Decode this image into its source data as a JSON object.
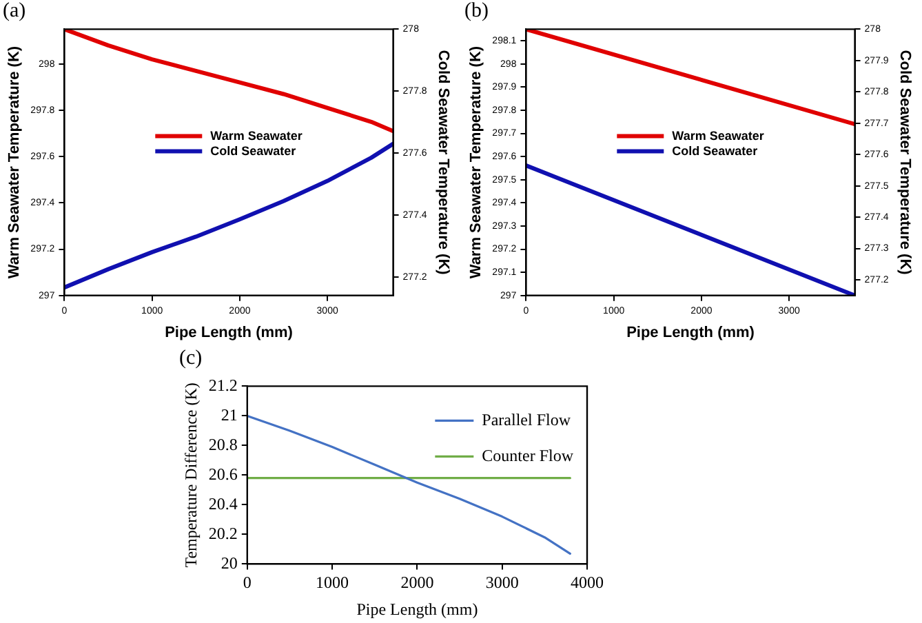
{
  "chart_data": [
    {
      "type": "line",
      "title": "(a)",
      "xlabel": "Pipe Length (mm)",
      "ylabel": "Warm Seawater Temperature (K)",
      "y2label": "Cold Seawater Temperature (K)",
      "x": [
        0,
        500,
        1000,
        1500,
        2000,
        2500,
        3000,
        3500,
        3750
      ],
      "series": [
        {
          "name": "Warm Seawater",
          "color": "#e00000",
          "values": [
            298.15,
            298.08,
            298.02,
            297.97,
            297.92,
            297.87,
            297.81,
            297.75,
            297.71
          ]
        },
        {
          "name": "Cold Seawater",
          "color": "#1010b0",
          "axis": "y2",
          "values": [
            277.166,
            277.225,
            277.28,
            277.33,
            277.386,
            277.445,
            277.51,
            277.585,
            277.63
          ]
        }
      ],
      "xlim": [
        0,
        3750
      ],
      "xticks": [
        0,
        1000,
        2000,
        3000
      ],
      "ylim": [
        297,
        298.15
      ],
      "yticks": [
        297,
        297.2,
        297.4,
        297.6,
        297.8,
        298
      ],
      "y2lim": [
        277.14,
        278
      ],
      "y2ticks": [
        277.2,
        277.4,
        277.6,
        277.8,
        278
      ],
      "legend": "center",
      "grid": false,
      "marker": "none",
      "line_style": "solid"
    },
    {
      "type": "line",
      "title": "(b)",
      "xlabel": "Pipe Length (mm)",
      "ylabel": "Warm Seawater Temperature (K)",
      "y2label": "Cold Seawater Temperature (K)",
      "x": [
        0,
        3750
      ],
      "series": [
        {
          "name": "Warm Seawater",
          "color": "#e00000",
          "values": [
            298.15,
            297.74
          ]
        },
        {
          "name": "Cold Seawater",
          "color": "#1010b0",
          "axis": "y2",
          "values": [
            277.565,
            277.15
          ]
        }
      ],
      "xlim": [
        0,
        3750
      ],
      "xticks": [
        0,
        1000,
        2000,
        3000
      ],
      "ylim": [
        297,
        298.15
      ],
      "yticks": [
        297,
        297.1,
        297.2,
        297.3,
        297.4,
        297.5,
        297.6,
        297.7,
        297.8,
        297.9,
        298,
        298.1
      ],
      "y2lim": [
        277.15,
        278
      ],
      "y2ticks": [
        277.2,
        277.3,
        277.4,
        277.5,
        277.6,
        277.7,
        277.8,
        277.9,
        278
      ],
      "legend": "center",
      "grid": false,
      "marker": "none",
      "line_style": "solid"
    },
    {
      "type": "line",
      "title": "(c)",
      "xlabel": "Pipe Length (mm)",
      "ylabel": "Temperature Difference (K)",
      "x": [
        0,
        500,
        1000,
        1500,
        2000,
        2500,
        3000,
        3500,
        3800
      ],
      "series": [
        {
          "name": "Parallel Flow",
          "color": "#4472c4",
          "values": [
            21.0,
            20.9,
            20.79,
            20.67,
            20.55,
            20.44,
            20.32,
            20.18,
            20.07
          ]
        },
        {
          "name": "Counter Flow",
          "color": "#70ad47",
          "values": [
            20.58,
            20.58,
            20.58,
            20.58,
            20.58,
            20.58,
            20.58,
            20.58,
            20.58
          ]
        }
      ],
      "xlim": [
        0,
        4000
      ],
      "xticks": [
        0,
        1000,
        2000,
        3000,
        4000
      ],
      "ylim": [
        20,
        21.2
      ],
      "yticks": [
        20,
        20.2,
        20.4,
        20.6,
        20.8,
        21,
        21.2
      ],
      "legend": "top right",
      "grid": false,
      "marker": "none",
      "line_style": "solid"
    }
  ]
}
